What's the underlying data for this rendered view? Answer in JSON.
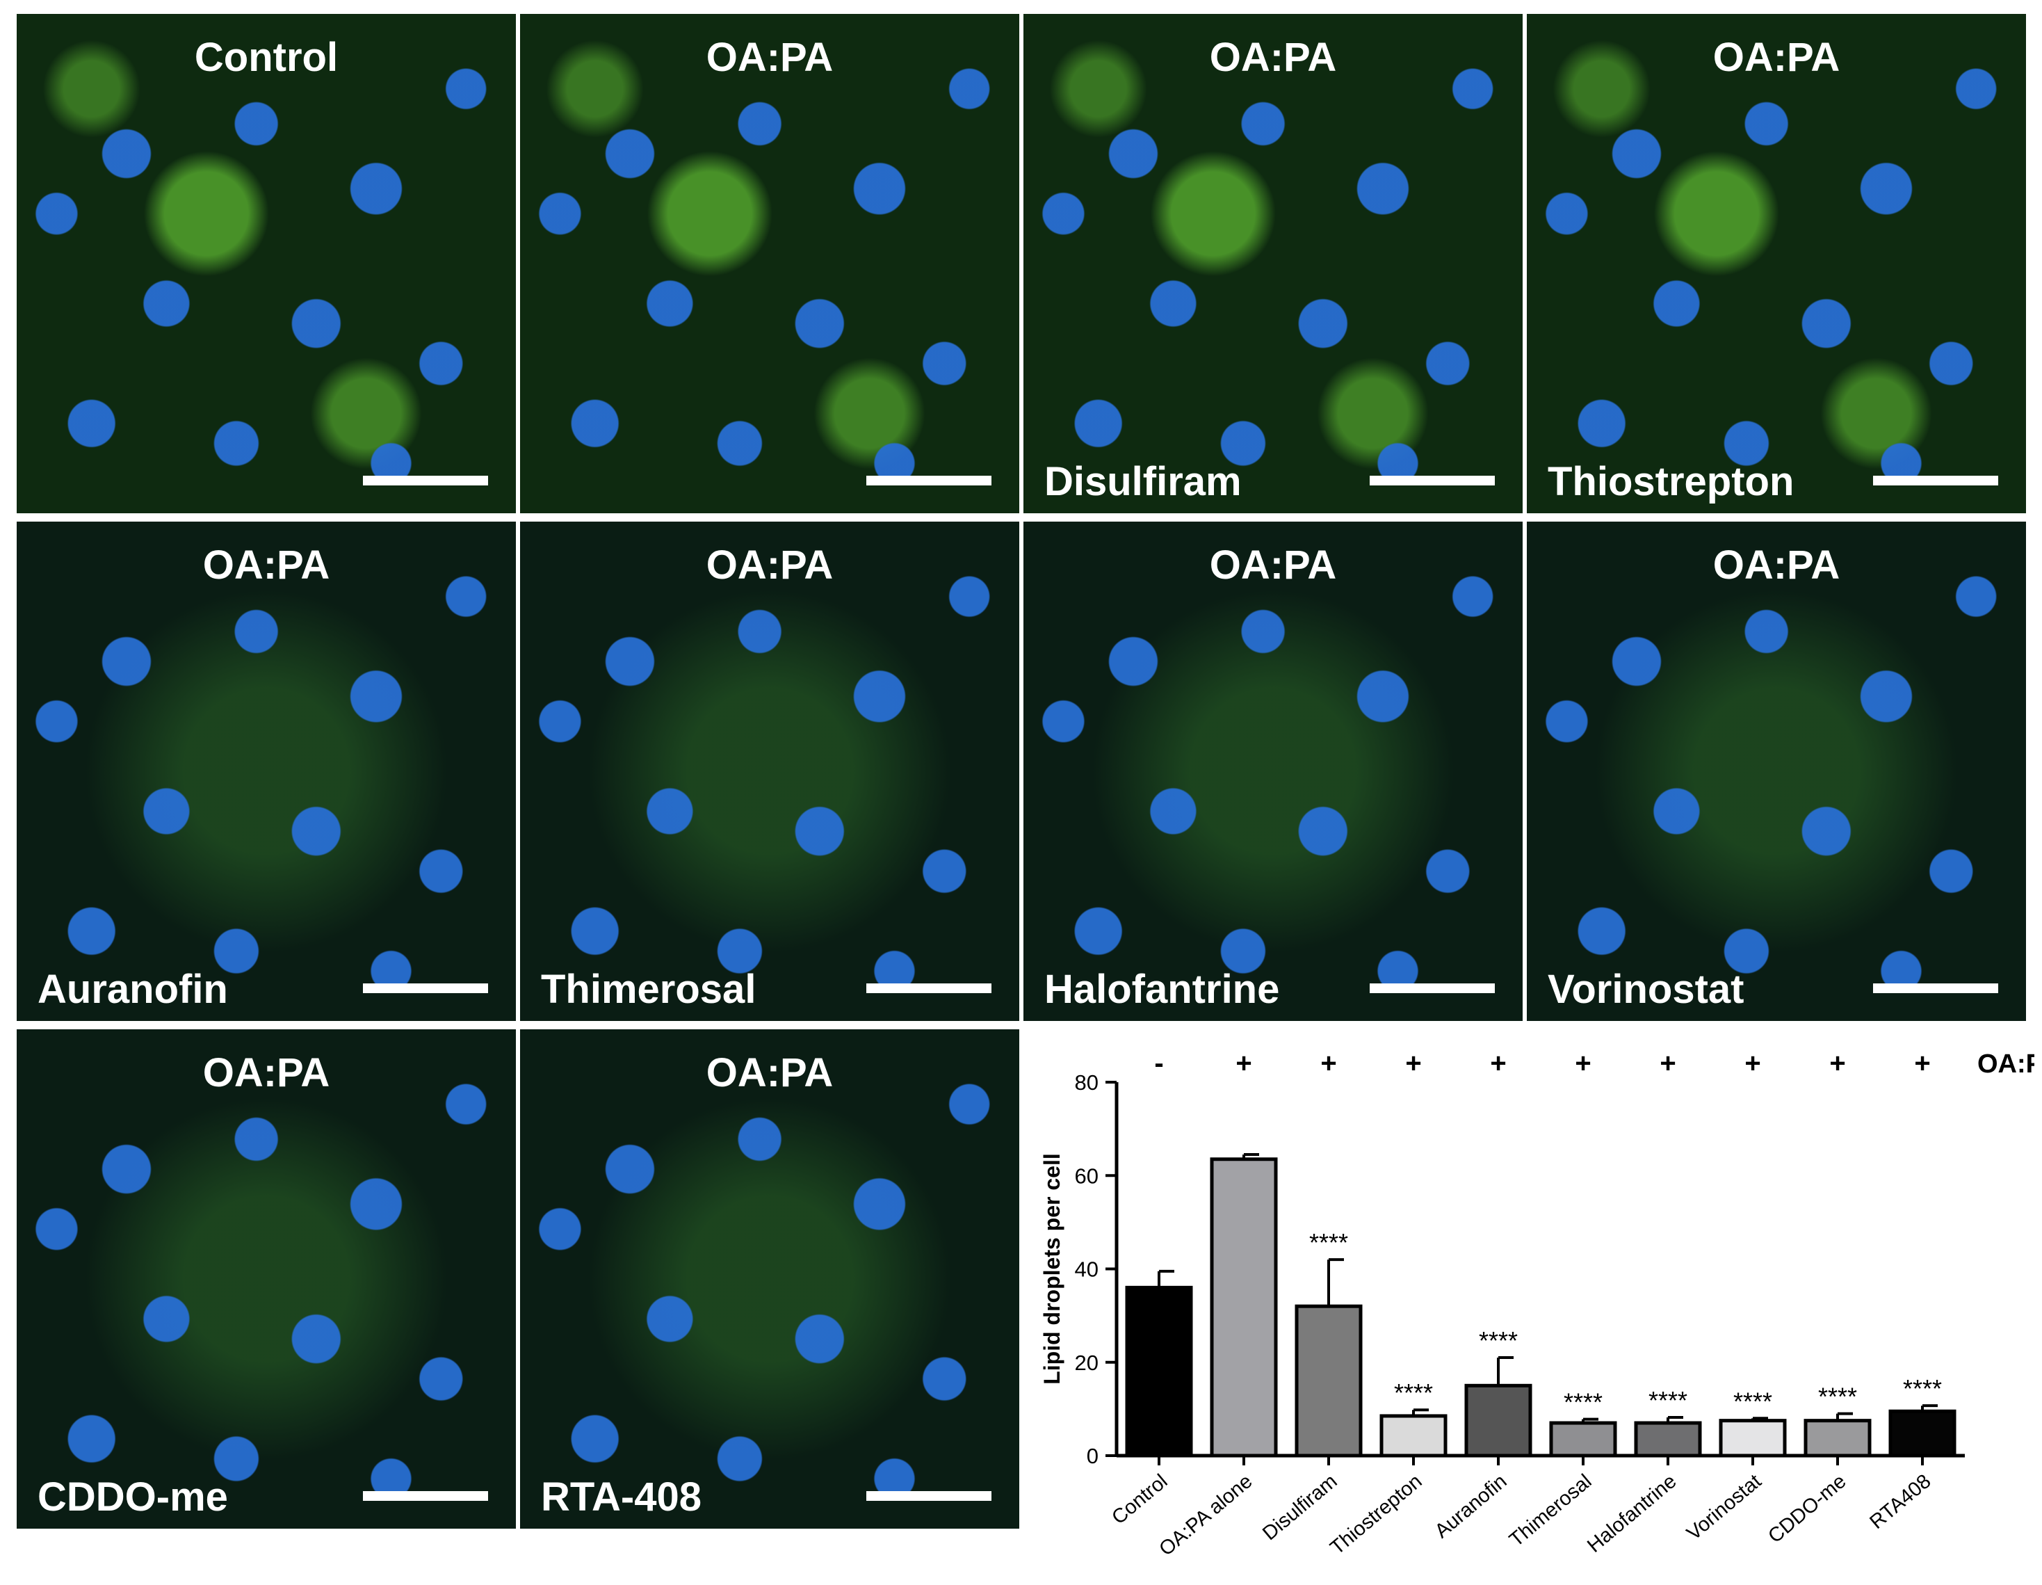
{
  "panels": [
    {
      "top": "Control",
      "bottom": ""
    },
    {
      "top": "OA:PA",
      "bottom": ""
    },
    {
      "top": "OA:PA",
      "bottom": "Disulfiram"
    },
    {
      "top": "OA:PA",
      "bottom": "Thiostrepton"
    },
    {
      "top": "OA:PA",
      "bottom": "Auranofin"
    },
    {
      "top": "OA:PA",
      "bottom": "Thimerosal"
    },
    {
      "top": "OA:PA",
      "bottom": "Halofantrine"
    },
    {
      "top": "OA:PA",
      "bottom": "Vorinostat"
    },
    {
      "top": "OA:PA",
      "bottom": "CDDO-me"
    },
    {
      "top": "OA:PA",
      "bottom": "RTA-408"
    }
  ],
  "chart_data": {
    "type": "bar",
    "ylabel": "Lipid droplets per cell",
    "xlabel": "",
    "ylim": [
      0,
      80
    ],
    "yticks": [
      0,
      20,
      40,
      60,
      80
    ],
    "categories": [
      "Control",
      "OA:PA alone",
      "Disulfiram",
      "Thiostrepton",
      "Auranofin",
      "Thimerosal",
      "Halofantrine",
      "Vorinostat",
      "CDDO-me",
      "RTA408"
    ],
    "tick_labels": [
      "Control",
      "OA:PA alone",
      "Disulfiram",
      "Thiostrepton",
      "Auranofin",
      "Thimerosal",
      "Halofantrine",
      "Vorinostat",
      "CDDO-me",
      "RTA408"
    ],
    "values": [
      36,
      63.5,
      32,
      8.5,
      15,
      7,
      7,
      7.5,
      7.5,
      9.5
    ],
    "errors": [
      3.5,
      1,
      10,
      1.3,
      6,
      0.8,
      1.2,
      0.5,
      1.5,
      1.2
    ],
    "significance": [
      "",
      "",
      "****",
      "****",
      "****",
      "****",
      "****",
      "****",
      "****",
      "****"
    ],
    "oapa_row": [
      "-",
      "+",
      "+",
      "+",
      "+",
      "+",
      "+",
      "+",
      "+",
      "+"
    ],
    "oapa_label": "OA:P A",
    "bar_colors": [
      "#000000",
      "#a2a2a6",
      "#7b7b7b",
      "#dadada",
      "#555555",
      "#8f8f92",
      "#6e6e70",
      "#e4e4e6",
      "#9a9a9c",
      "#050505"
    ],
    "grid": false
  }
}
